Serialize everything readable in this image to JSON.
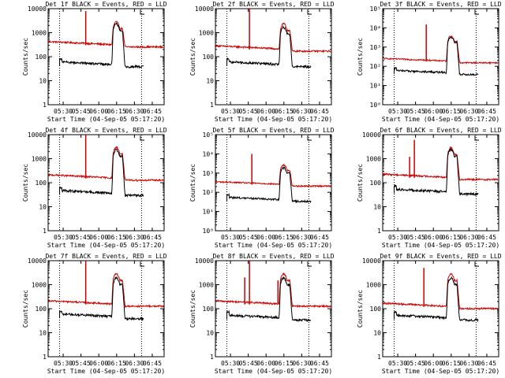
{
  "figure": {
    "background": "#ffffff",
    "events_color": "#000000",
    "lld_color": "#cc0000",
    "vline_color": "#000000",
    "start_label": "Start Time (04-Sep-05 05:17:20)",
    "ylabel": "Counts/sec"
  },
  "chart_data": [
    {
      "type": "line",
      "title": "Det 1f BLACK = Events, RED = LLD",
      "scale": "log",
      "ylim": [
        1,
        10000
      ],
      "ytick_style": "plain",
      "yticks": [
        {
          "v": 1,
          "l": "1"
        },
        {
          "v": 10,
          "l": "10"
        },
        {
          "v": 100,
          "l": "100"
        },
        {
          "v": 1000,
          "l": "1000"
        },
        {
          "v": 10000,
          "l": "10000"
        }
      ],
      "xticks": [
        "05:30",
        "05:45",
        "06:00",
        "06:15",
        "06:30",
        "06:45"
      ],
      "xlabel": "Start Time (04-Sep-05 05:17:20)",
      "ylabel": "Counts/sec",
      "dotted_times": [
        "05:27",
        "06:36"
      ],
      "events_base": 45,
      "lld_base": 300,
      "events_start": "05:27",
      "peak_events": 2500,
      "peak_lld": 3000,
      "spikes": [
        {
          "t": "05:49",
          "v": 8000
        }
      ],
      "series": [
        {
          "name": "Events",
          "color": "#000000"
        },
        {
          "name": "LLD",
          "color": "#cc0000"
        }
      ]
    },
    {
      "type": "line",
      "title": "Det 2f BLACK = Events, RED = LLD",
      "scale": "log",
      "ylim": [
        1,
        10000
      ],
      "ytick_style": "plain",
      "yticks": [
        {
          "v": 1,
          "l": "1"
        },
        {
          "v": 10,
          "l": "10"
        },
        {
          "v": 100,
          "l": "100"
        },
        {
          "v": 1000,
          "l": "1000"
        },
        {
          "v": 10000,
          "l": "10000"
        }
      ],
      "xticks": [
        "05:30",
        "05:45",
        "06:00",
        "06:15",
        "06:30",
        "06:45"
      ],
      "xlabel": "Start Time (04-Sep-05 05:17:20)",
      "ylabel": "Counts/sec",
      "dotted_times": [
        "05:27",
        "06:36"
      ],
      "events_base": 45,
      "lld_base": 200,
      "events_start": "05:27",
      "peak_events": 1800,
      "peak_lld": 2500,
      "spikes": [
        {
          "t": "05:46",
          "v": 10000
        }
      ],
      "series": [
        {
          "name": "Events",
          "color": "#000000"
        },
        {
          "name": "LLD",
          "color": "#cc0000"
        }
      ]
    },
    {
      "type": "line",
      "title": "Det 3f BLACK = Events, RED = LLD",
      "scale": "log",
      "ylim": [
        1,
        100000
      ],
      "ytick_style": "sci",
      "yticks": [
        {
          "v": 1,
          "l": "10⁰"
        },
        {
          "v": 10,
          "l": "10¹"
        },
        {
          "v": 100,
          "l": "10²"
        },
        {
          "v": 1000,
          "l": "10³"
        },
        {
          "v": 10000,
          "l": "10⁴"
        },
        {
          "v": 100000,
          "l": "10⁵"
        }
      ],
      "xticks": [
        "05:30",
        "05:45",
        "06:00",
        "06:15",
        "06:30",
        "06:45"
      ],
      "xlabel": "Start Time (04-Sep-05 05:17:20)",
      "ylabel": "Counts/sec",
      "dotted_times": [
        "05:27",
        "06:36"
      ],
      "events_base": 45,
      "lld_base": 180,
      "events_start": "05:27",
      "peak_events": 3500,
      "peak_lld": 4000,
      "spikes": [
        {
          "t": "05:54",
          "v": 15000
        }
      ],
      "series": [
        {
          "name": "Events",
          "color": "#000000"
        },
        {
          "name": "LLD",
          "color": "#cc0000"
        }
      ]
    },
    {
      "type": "line",
      "title": "Det 4f BLACK = Events, RED = LLD",
      "scale": "log",
      "ylim": [
        1,
        10000
      ],
      "ytick_style": "plain",
      "yticks": [
        {
          "v": 1,
          "l": "1"
        },
        {
          "v": 10,
          "l": "10"
        },
        {
          "v": 100,
          "l": "100"
        },
        {
          "v": 1000,
          "l": "1000"
        },
        {
          "v": 10000,
          "l": "10000"
        }
      ],
      "xticks": [
        "05:30",
        "05:45",
        "06:00",
        "06:15",
        "06:30",
        "06:45"
      ],
      "xlabel": "Start Time (04-Sep-05 05:17:20)",
      "ylabel": "Counts/sec",
      "dotted_times": [
        "05:27",
        "06:36"
      ],
      "events_base": 35,
      "lld_base": 150,
      "events_start": "05:27",
      "peak_events": 2500,
      "peak_lld": 3200,
      "spikes": [
        {
          "t": "05:49",
          "v": 10000
        }
      ],
      "series": [
        {
          "name": "Events",
          "color": "#000000"
        },
        {
          "name": "LLD",
          "color": "#cc0000"
        }
      ]
    },
    {
      "type": "line",
      "title": "Det 5f BLACK = Events, RED = LLD",
      "scale": "log",
      "ylim": [
        1,
        100000
      ],
      "ytick_style": "sci",
      "yticks": [
        {
          "v": 1,
          "l": "10⁰"
        },
        {
          "v": 10,
          "l": "10¹"
        },
        {
          "v": 100,
          "l": "10²"
        },
        {
          "v": 1000,
          "l": "10³"
        },
        {
          "v": 10000,
          "l": "10⁴"
        },
        {
          "v": 100000,
          "l": "10⁵"
        }
      ],
      "xticks": [
        "05:30",
        "05:45",
        "06:00",
        "06:15",
        "06:30",
        "06:45"
      ],
      "xlabel": "Start Time (04-Sep-05 05:17:20)",
      "ylabel": "Counts/sec",
      "dotted_times": [
        "05:27",
        "06:36"
      ],
      "events_base": 40,
      "lld_base": 250,
      "events_start": "05:27",
      "peak_events": 2000,
      "peak_lld": 2800,
      "spikes": [
        {
          "t": "05:48",
          "v": 10000
        }
      ],
      "series": [
        {
          "name": "Events",
          "color": "#000000"
        },
        {
          "name": "LLD",
          "color": "#cc0000"
        }
      ]
    },
    {
      "type": "line",
      "title": "Det 6f BLACK = Events, RED = LLD",
      "scale": "log",
      "ylim": [
        1,
        10000
      ],
      "ytick_style": "plain",
      "yticks": [
        {
          "v": 1,
          "l": "1"
        },
        {
          "v": 10,
          "l": "10"
        },
        {
          "v": 100,
          "l": "100"
        },
        {
          "v": 1000,
          "l": "1000"
        },
        {
          "v": 10000,
          "l": "10000"
        }
      ],
      "xticks": [
        "05:30",
        "05:45",
        "06:00",
        "06:15",
        "06:30",
        "06:45"
      ],
      "xlabel": "Start Time (04-Sep-05 05:17:20)",
      "ylabel": "Counts/sec",
      "dotted_times": [
        "05:27",
        "06:36"
      ],
      "events_base": 40,
      "lld_base": 160,
      "events_start": "05:27",
      "peak_events": 2500,
      "peak_lld": 3000,
      "spikes": [
        {
          "t": "05:40",
          "v": 1200
        },
        {
          "t": "05:44",
          "v": 6000
        }
      ],
      "series": [
        {
          "name": "Events",
          "color": "#000000"
        },
        {
          "name": "LLD",
          "color": "#cc0000"
        }
      ]
    },
    {
      "type": "line",
      "title": "Det 7f BLACK = Events, RED = LLD",
      "scale": "log",
      "ylim": [
        1,
        10000
      ],
      "ytick_style": "plain",
      "yticks": [
        {
          "v": 1,
          "l": "1"
        },
        {
          "v": 10,
          "l": "10"
        },
        {
          "v": 100,
          "l": "100"
        },
        {
          "v": 1000,
          "l": "1000"
        },
        {
          "v": 10000,
          "l": "10000"
        }
      ],
      "xticks": [
        "05:30",
        "05:45",
        "06:00",
        "06:15",
        "06:30",
        "06:45"
      ],
      "xlabel": "Start Time (04-Sep-05 05:17:20)",
      "ylabel": "Counts/sec",
      "dotted_times": [
        "05:27",
        "06:36"
      ],
      "events_base": 45,
      "lld_base": 150,
      "events_start": "05:27",
      "peak_events": 2000,
      "peak_lld": 3000,
      "spikes": [
        {
          "t": "05:49",
          "v": 10000
        }
      ],
      "series": [
        {
          "name": "Events",
          "color": "#000000"
        },
        {
          "name": "LLD",
          "color": "#cc0000"
        }
      ]
    },
    {
      "type": "line",
      "title": "Det 8f BLACK = Events, RED = LLD",
      "scale": "log",
      "ylim": [
        1,
        10000
      ],
      "ytick_style": "plain",
      "yticks": [
        {
          "v": 1,
          "l": "1"
        },
        {
          "v": 10,
          "l": "10"
        },
        {
          "v": 100,
          "l": "100"
        },
        {
          "v": 1000,
          "l": "1000"
        },
        {
          "v": 10000,
          "l": "10000"
        }
      ],
      "xticks": [
        "05:30",
        "05:45",
        "06:00",
        "06:15",
        "06:30",
        "06:45"
      ],
      "xlabel": "Start Time (04-Sep-05 05:17:20)",
      "ylabel": "Counts/sec",
      "dotted_times": [
        "05:27",
        "06:36"
      ],
      "events_base": 40,
      "lld_base": 150,
      "events_start": "05:27",
      "peak_events": 2000,
      "peak_lld": 3000,
      "spikes": [
        {
          "t": "05:42",
          "v": 2000
        },
        {
          "t": "05:46",
          "v": 10000
        },
        {
          "t": "06:10",
          "v": 1500
        }
      ],
      "series": [
        {
          "name": "Events",
          "color": "#000000"
        },
        {
          "name": "LLD",
          "color": "#cc0000"
        }
      ]
    },
    {
      "type": "line",
      "title": "Det 9f BLACK = Events, RED = LLD",
      "scale": "log",
      "ylim": [
        1,
        10000
      ],
      "ytick_style": "plain",
      "yticks": [
        {
          "v": 1,
          "l": "1"
        },
        {
          "v": 10,
          "l": "10"
        },
        {
          "v": 100,
          "l": "100"
        },
        {
          "v": 1000,
          "l": "1000"
        },
        {
          "v": 10000,
          "l": "10000"
        }
      ],
      "xticks": [
        "05:30",
        "05:45",
        "06:00",
        "06:15",
        "06:30",
        "06:45"
      ],
      "xlabel": "Start Time (04-Sep-05 05:17:20)",
      "ylabel": "Counts/sec",
      "dotted_times": [
        "05:27",
        "06:36"
      ],
      "events_base": 40,
      "lld_base": 120,
      "events_start": "05:27",
      "peak_events": 2000,
      "peak_lld": 3000,
      "spikes": [
        {
          "t": "05:52",
          "v": 5000
        }
      ],
      "series": [
        {
          "name": "Events",
          "color": "#000000"
        },
        {
          "name": "LLD",
          "color": "#cc0000"
        }
      ]
    }
  ]
}
